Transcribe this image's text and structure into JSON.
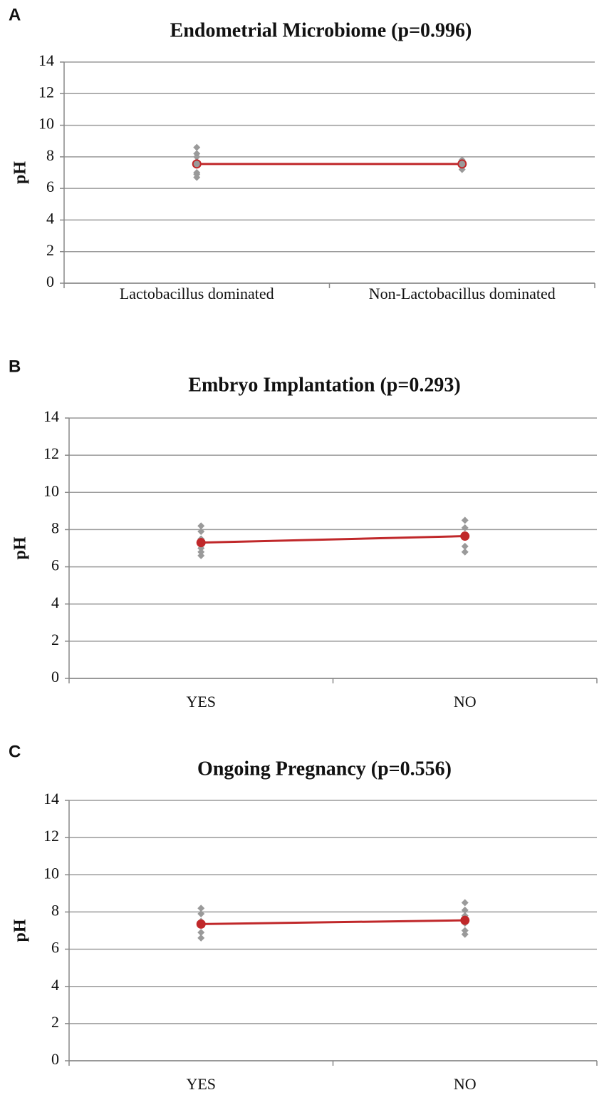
{
  "chart_data": [
    {
      "type": "line",
      "panel": "A",
      "title": "Endometrial Microbiome (p=0.996)",
      "ylabel": "pH",
      "categories": [
        "Lactobacillus dominated",
        "Non-Lactobacillus dominated"
      ],
      "means": [
        7.55,
        7.55
      ],
      "points": [
        [
          8.6,
          8.2,
          8.0,
          7.7,
          7.5,
          7.0,
          6.9,
          6.7
        ],
        [
          7.8,
          7.6,
          7.4,
          7.2
        ]
      ],
      "color": "#c0282a",
      "point_color": "#9a9a9a",
      "ylim": [
        0,
        14
      ],
      "yticks": [
        0,
        2,
        4,
        6,
        8,
        10,
        12,
        14
      ],
      "grid": true
    },
    {
      "type": "line",
      "panel": "B",
      "title": "Embryo Implantation (p=0.293)",
      "ylabel": "pH",
      "categories": [
        "YES",
        "NO"
      ],
      "means": [
        7.3,
        7.65
      ],
      "points": [
        [
          8.2,
          7.9,
          7.5,
          7.0,
          6.8,
          6.6
        ],
        [
          8.5,
          8.1,
          7.7,
          7.6,
          7.1,
          6.8
        ]
      ],
      "color": "#c0282a",
      "point_color": "#9a9a9a",
      "ylim": [
        0,
        14
      ],
      "yticks": [
        0,
        2,
        4,
        6,
        8,
        10,
        12,
        14
      ],
      "grid": true
    },
    {
      "type": "line",
      "panel": "C",
      "title": "Ongoing Pregnancy (p=0.556)",
      "ylabel": "pH",
      "categories": [
        "YES",
        "NO"
      ],
      "means": [
        7.35,
        7.55
      ],
      "points": [
        [
          8.2,
          7.9,
          7.5,
          7.4,
          6.9,
          6.6
        ],
        [
          8.5,
          8.1,
          7.8,
          7.6,
          7.4,
          7.0,
          6.8
        ]
      ],
      "color": "#c0282a",
      "point_color": "#9a9a9a",
      "ylim": [
        0,
        14
      ],
      "yticks": [
        0,
        2,
        4,
        6,
        8,
        10,
        12,
        14
      ],
      "grid": true
    }
  ]
}
